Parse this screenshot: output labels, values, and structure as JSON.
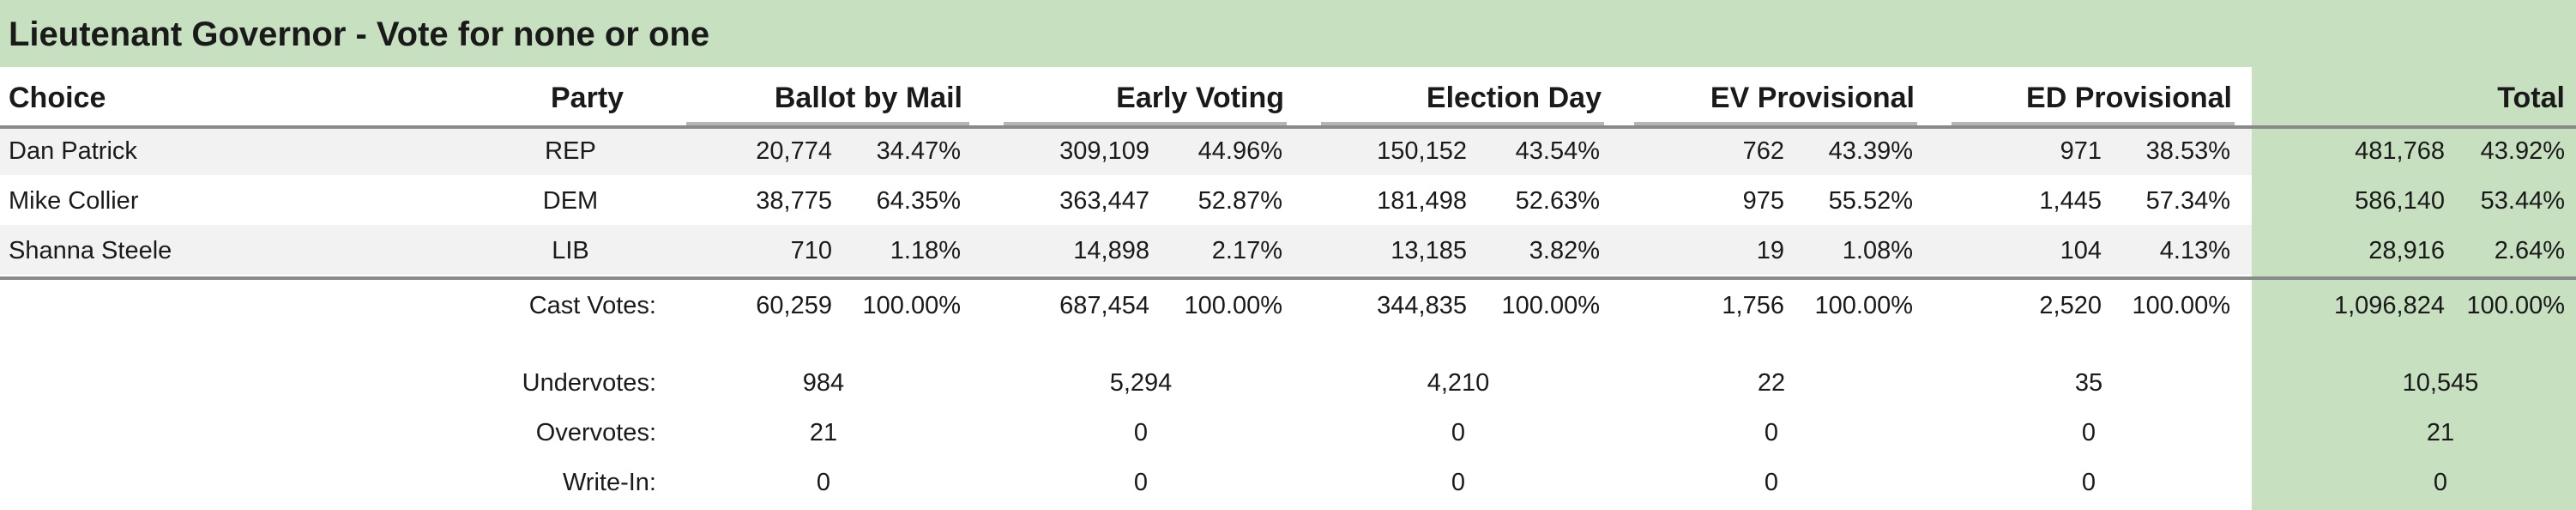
{
  "title": "Lieutenant Governor - Vote for none or one",
  "headers": {
    "choice": "Choice",
    "party": "Party",
    "columns": [
      "Ballot by Mail",
      "Early Voting",
      "Election Day",
      "EV Provisional",
      "ED Provisional",
      "Total"
    ]
  },
  "candidates": [
    {
      "name": "Dan Patrick",
      "party": "REP",
      "values": [
        [
          "20,774",
          "34.47%"
        ],
        [
          "309,109",
          "44.96%"
        ],
        [
          "150,152",
          "43.54%"
        ],
        [
          "762",
          "43.39%"
        ],
        [
          "971",
          "38.53%"
        ],
        [
          "481,768",
          "43.92%"
        ]
      ]
    },
    {
      "name": "Mike Collier",
      "party": "DEM",
      "values": [
        [
          "38,775",
          "64.35%"
        ],
        [
          "363,447",
          "52.87%"
        ],
        [
          "181,498",
          "52.63%"
        ],
        [
          "975",
          "55.52%"
        ],
        [
          "1,445",
          "57.34%"
        ],
        [
          "586,140",
          "53.44%"
        ]
      ]
    },
    {
      "name": "Shanna Steele",
      "party": "LIB",
      "values": [
        [
          "710",
          "1.18%"
        ],
        [
          "14,898",
          "2.17%"
        ],
        [
          "13,185",
          "3.82%"
        ],
        [
          "19",
          "1.08%"
        ],
        [
          "104",
          "4.13%"
        ],
        [
          "28,916",
          "2.64%"
        ]
      ]
    }
  ],
  "cast_votes": {
    "label": "Cast Votes:",
    "values": [
      [
        "60,259",
        "100.00%"
      ],
      [
        "687,454",
        "100.00%"
      ],
      [
        "344,835",
        "100.00%"
      ],
      [
        "1,756",
        "100.00%"
      ],
      [
        "2,520",
        "100.00%"
      ],
      [
        "1,096,824",
        "100.00%"
      ]
    ]
  },
  "extra_rows": [
    {
      "label": "Undervotes:",
      "values": [
        "984",
        "5,294",
        "4,210",
        "22",
        "35",
        "10,545"
      ]
    },
    {
      "label": "Overvotes:",
      "values": [
        "21",
        "0",
        "0",
        "0",
        "0",
        "21"
      ]
    },
    {
      "label": "Write-In:",
      "values": [
        "0",
        "0",
        "0",
        "0",
        "0",
        "0"
      ]
    }
  ],
  "colors": {
    "header_band": "#c6e0c0",
    "total_column": "#c6e0c0",
    "stripe": "#f2f2f2"
  }
}
